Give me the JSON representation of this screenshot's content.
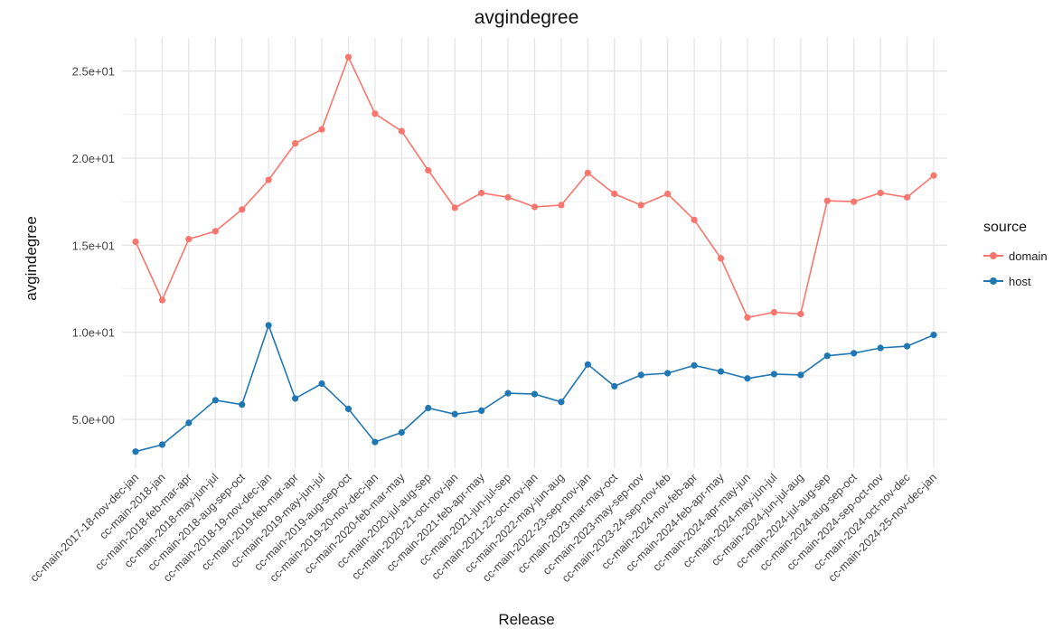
{
  "chart_data": {
    "type": "line",
    "title": "avgindegree",
    "xlabel": "Release",
    "ylabel": "avgindegree",
    "categories": [
      "cc-main-2017-18-nov-dec-jan",
      "cc-main-2018-jan",
      "cc-main-2018-feb-mar-apr",
      "cc-main-2018-may-jun-jul",
      "cc-main-2018-aug-sep-oct",
      "cc-main-2018-19-nov-dec-jan",
      "cc-main-2019-feb-mar-apr",
      "cc-main-2019-may-jun-jul",
      "cc-main-2019-aug-sep-oct",
      "cc-main-2019-20-nov-dec-jan",
      "cc-main-2020-feb-mar-may",
      "cc-main-2020-jul-aug-sep",
      "cc-main-2020-21-oct-nov-jan",
      "cc-main-2021-feb-apr-may",
      "cc-main-2021-jun-jul-sep",
      "cc-main-2021-22-oct-nov-jan",
      "cc-main-2022-may-jun-aug",
      "cc-main-2022-23-sep-nov-jan",
      "cc-main-2023-mar-may-oct",
      "cc-main-2023-may-sep-nov",
      "cc-main-2023-24-sep-nov-feb",
      "cc-main-2024-nov-feb-apr",
      "cc-main-2024-feb-apr-may",
      "cc-main-2024-apr-may-jun",
      "cc-main-2024-may-jun-jul",
      "cc-main-2024-jun-jul-aug",
      "cc-main-2024-jul-aug-sep",
      "cc-main-2024-aug-sep-oct",
      "cc-main-2024-sep-oct-nov",
      "cc-main-2024-oct-nov-dec",
      "cc-main-2024-25-nov-dec-jan"
    ],
    "series": [
      {
        "name": "domain",
        "color": "#F8766D",
        "values": [
          15.2,
          11.85,
          15.35,
          15.8,
          17.05,
          18.75,
          20.85,
          21.65,
          25.8,
          22.55,
          21.55,
          19.3,
          17.15,
          18.0,
          17.75,
          17.2,
          17.3,
          19.15,
          17.95,
          17.3,
          17.95,
          16.45,
          14.25,
          10.85,
          11.15,
          11.05,
          17.55,
          17.5,
          18.0,
          17.75,
          19.0
        ]
      },
      {
        "name": "host",
        "color": "#1F77B4",
        "values": [
          3.15,
          3.55,
          4.8,
          6.1,
          5.85,
          10.4,
          6.2,
          7.05,
          5.6,
          3.7,
          4.25,
          5.65,
          5.3,
          5.5,
          6.5,
          6.45,
          6.0,
          8.15,
          6.9,
          7.55,
          7.65,
          8.1,
          7.75,
          7.35,
          7.6,
          7.55,
          8.65,
          8.8,
          9.1,
          9.2,
          9.85
        ]
      }
    ],
    "y_ticks": [
      5,
      10,
      15,
      20,
      25
    ],
    "y_tick_labels": [
      "5.0e+00",
      "1.0e+01",
      "1.5e+01",
      "2.0e+01",
      "2.5e+01"
    ],
    "ylim": [
      2.2,
      26.9
    ],
    "grid": true,
    "legend": {
      "title": "source",
      "position": "right"
    }
  }
}
